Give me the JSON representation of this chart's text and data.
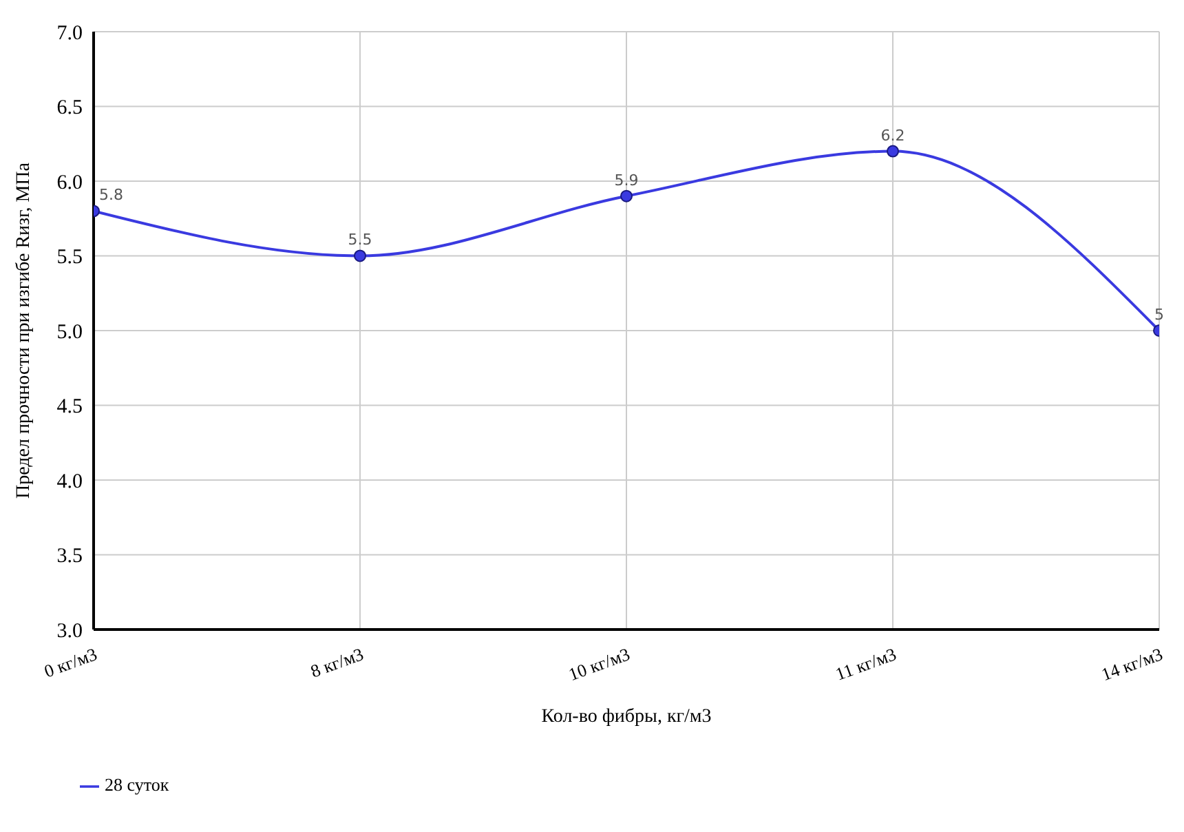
{
  "chart_data": {
    "type": "line",
    "xlabel": "Кол-во фибры, кг/м3",
    "ylabel": "Предел прочности при изгибе Rизг, МПа",
    "categories": [
      "0 кг/м3",
      "8 кг/м3",
      "10 кг/м3",
      "11 кг/м3",
      "14 кг/м3"
    ],
    "series": [
      {
        "name": "28 суток",
        "color": "#3a3ae0",
        "values": [
          5.8,
          5.5,
          5.9,
          6.2,
          5
        ]
      }
    ],
    "ylim": [
      3,
      7
    ],
    "yticks": [
      {
        "value": 3,
        "label": "3.0"
      },
      {
        "value": 3.5,
        "label": "3.5"
      },
      {
        "value": 4,
        "label": "4.0"
      },
      {
        "value": 4.5,
        "label": "4.5"
      },
      {
        "value": 5,
        "label": "5.0"
      },
      {
        "value": 5.5,
        "label": "5.5"
      },
      {
        "value": 6,
        "label": "6.0"
      },
      {
        "value": 6.5,
        "label": "6.5"
      },
      {
        "value": 7,
        "label": "7.0"
      }
    ],
    "grid": true,
    "legend": "bottom left",
    "marker": "circle",
    "line_style": "solid",
    "data_labels": true
  }
}
